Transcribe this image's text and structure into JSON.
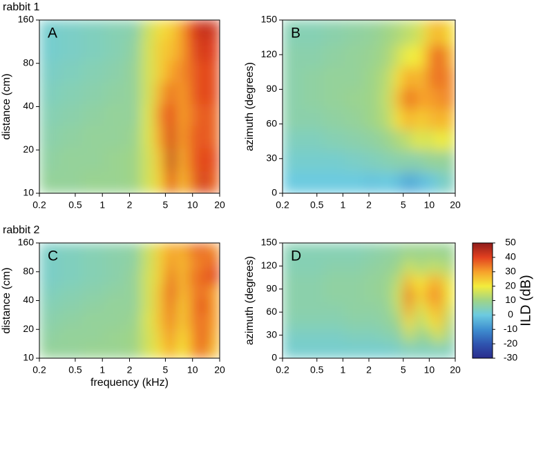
{
  "chart_data": [
    {
      "type": "heatmap",
      "label": "A",
      "title": "rabbit 1",
      "ylabel": "distance (cm)",
      "xlog": true,
      "ylog": true,
      "xlim": [
        0.2,
        20
      ],
      "xticks": [
        0.2,
        0.5,
        1,
        2,
        5,
        10,
        20
      ],
      "ylim": [
        10,
        160
      ],
      "yticks": [
        10,
        20,
        40,
        80,
        160
      ],
      "x": [
        0.25,
        0.45,
        0.8,
        1.4,
        2.2,
        3.2,
        4.5,
        5.8,
        7.5,
        10,
        13,
        17
      ],
      "y": [
        12,
        17,
        25,
        35,
        50,
        70,
        100,
        140
      ],
      "values": [
        [
          8,
          8,
          9,
          9,
          10,
          16,
          24,
          40,
          26,
          34,
          42,
          36
        ],
        [
          7,
          8,
          8,
          9,
          10,
          16,
          26,
          44,
          28,
          36,
          40,
          38
        ],
        [
          6,
          7,
          8,
          8,
          9,
          17,
          30,
          42,
          30,
          36,
          38,
          36
        ],
        [
          5,
          6,
          7,
          8,
          8,
          17,
          32,
          40,
          30,
          34,
          38,
          36
        ],
        [
          4,
          5,
          6,
          7,
          8,
          16,
          28,
          36,
          30,
          36,
          40,
          38
        ],
        [
          3,
          4,
          5,
          6,
          8,
          16,
          24,
          30,
          32,
          36,
          40,
          38
        ],
        [
          2,
          3,
          4,
          5,
          7,
          16,
          24,
          26,
          30,
          38,
          42,
          40
        ],
        [
          2,
          3,
          4,
          5,
          6,
          15,
          22,
          24,
          30,
          40,
          44,
          42
        ]
      ]
    },
    {
      "type": "heatmap",
      "label": "B",
      "ylabel": "azimuth (degrees)",
      "xlog": true,
      "ylog": false,
      "xlim": [
        0.2,
        20
      ],
      "xticks": [
        0.2,
        0.5,
        1,
        2,
        5,
        10,
        20
      ],
      "ylim": [
        0,
        150
      ],
      "yticks": [
        0,
        30,
        60,
        90,
        120,
        150
      ],
      "x": [
        0.25,
        0.45,
        0.8,
        1.4,
        2.2,
        3.2,
        4.5,
        5.8,
        7.5,
        10,
        13,
        17
      ],
      "y": [
        10,
        28,
        46,
        64,
        82,
        100,
        118,
        138
      ],
      "values": [
        [
          0,
          0,
          0,
          0,
          -1,
          0,
          -2,
          -6,
          -3,
          -1,
          2,
          4
        ],
        [
          2,
          2,
          2,
          3,
          4,
          5,
          6,
          6,
          6,
          8,
          8,
          8
        ],
        [
          4,
          4,
          5,
          6,
          7,
          9,
          12,
          14,
          18,
          16,
          20,
          18
        ],
        [
          6,
          6,
          7,
          8,
          10,
          13,
          22,
          28,
          24,
          26,
          28,
          26
        ],
        [
          6,
          7,
          8,
          9,
          10,
          14,
          26,
          36,
          30,
          30,
          32,
          32
        ],
        [
          6,
          7,
          8,
          8,
          10,
          13,
          22,
          30,
          26,
          32,
          36,
          32
        ],
        [
          6,
          6,
          7,
          8,
          9,
          11,
          16,
          20,
          20,
          30,
          38,
          28
        ],
        [
          5,
          5,
          6,
          7,
          8,
          10,
          12,
          14,
          16,
          24,
          28,
          22
        ]
      ]
    },
    {
      "type": "heatmap",
      "label": "C",
      "title": "rabbit 2",
      "ylabel": "distance (cm)",
      "xlabel": "frequency (kHz)",
      "xlog": true,
      "ylog": true,
      "xlim": [
        0.2,
        20
      ],
      "xticks": [
        0.2,
        0.5,
        1,
        2,
        5,
        10,
        20
      ],
      "ylim": [
        10,
        160
      ],
      "yticks": [
        10,
        20,
        40,
        80,
        160
      ],
      "x": [
        0.25,
        0.45,
        0.8,
        1.4,
        2.2,
        3.2,
        4.5,
        5.8,
        7.5,
        10,
        13,
        17
      ],
      "y": [
        12,
        17,
        25,
        35,
        50,
        70,
        100,
        140
      ],
      "values": [
        [
          8,
          8,
          9,
          9,
          10,
          16,
          22,
          30,
          20,
          30,
          36,
          26
        ],
        [
          7,
          8,
          8,
          9,
          10,
          16,
          24,
          32,
          22,
          30,
          38,
          28
        ],
        [
          6,
          7,
          8,
          8,
          9,
          17,
          26,
          34,
          24,
          32,
          36,
          30
        ],
        [
          5,
          6,
          7,
          8,
          8,
          16,
          26,
          36,
          24,
          32,
          40,
          30
        ],
        [
          4,
          5,
          6,
          7,
          8,
          16,
          26,
          38,
          26,
          32,
          36,
          30
        ],
        [
          3,
          4,
          5,
          6,
          8,
          16,
          24,
          36,
          26,
          34,
          36,
          40
        ],
        [
          3,
          4,
          5,
          6,
          7,
          15,
          24,
          32,
          26,
          32,
          34,
          36
        ],
        [
          3,
          4,
          5,
          6,
          7,
          15,
          24,
          30,
          28,
          34,
          36,
          32
        ]
      ]
    },
    {
      "type": "heatmap",
      "label": "D",
      "ylabel": "azimuth (degrees)",
      "xlog": true,
      "ylog": false,
      "xlim": [
        0.2,
        20
      ],
      "xticks": [
        0.2,
        0.5,
        1,
        2,
        5,
        10,
        20
      ],
      "ylim": [
        0,
        150
      ],
      "yticks": [
        0,
        30,
        60,
        90,
        120,
        150
      ],
      "x": [
        0.25,
        0.45,
        0.8,
        1.4,
        2.2,
        3.2,
        4.5,
        5.8,
        7.5,
        10,
        13,
        17
      ],
      "y": [
        10,
        28,
        46,
        64,
        82,
        100,
        118,
        138
      ],
      "values": [
        [
          2,
          2,
          2,
          2,
          2,
          2,
          3,
          4,
          4,
          4,
          4,
          4
        ],
        [
          3,
          3,
          3,
          4,
          4,
          5,
          6,
          14,
          8,
          10,
          16,
          8
        ],
        [
          5,
          5,
          5,
          6,
          6,
          7,
          10,
          22,
          12,
          18,
          24,
          12
        ],
        [
          6,
          6,
          6,
          7,
          7,
          8,
          14,
          30,
          16,
          24,
          28,
          16
        ],
        [
          6,
          6,
          7,
          7,
          8,
          9,
          16,
          36,
          22,
          30,
          32,
          20
        ],
        [
          6,
          6,
          7,
          7,
          8,
          9,
          14,
          28,
          20,
          26,
          28,
          18
        ],
        [
          5,
          5,
          6,
          6,
          7,
          8,
          10,
          16,
          12,
          14,
          14,
          12
        ],
        [
          5,
          5,
          5,
          5,
          6,
          7,
          8,
          10,
          9,
          10,
          9,
          9
        ]
      ]
    },
    {
      "type": "colorbar",
      "ylabel": "ILD (dB)",
      "ylim": [
        -30,
        50
      ],
      "yticks": [
        -30,
        -20,
        -10,
        0,
        10,
        20,
        30,
        40,
        50
      ],
      "colormap": [
        "#2a2c8c",
        "#2f55b0",
        "#3f8fd0",
        "#6ccbe0",
        "#9fd488",
        "#f3ec3c",
        "#f6a12b",
        "#e2401f",
        "#8e1b1b"
      ]
    }
  ]
}
